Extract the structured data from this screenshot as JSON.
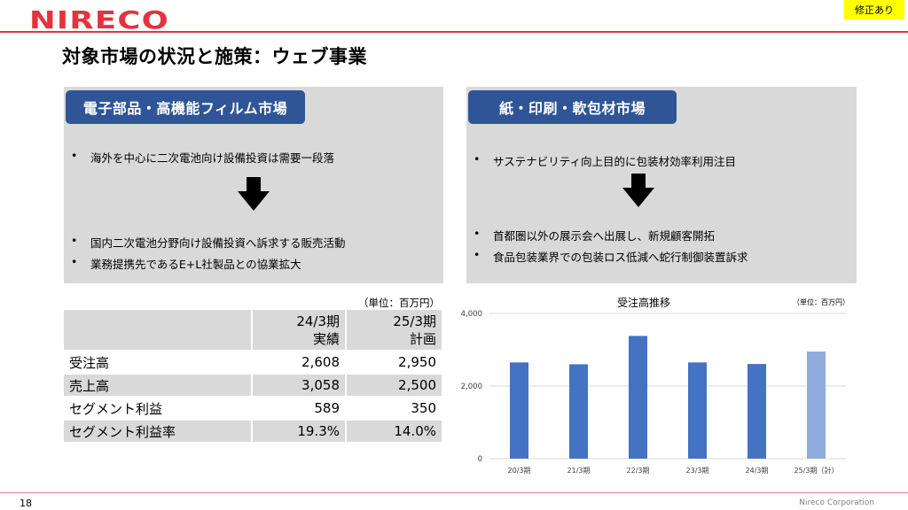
{
  "header": {
    "logo_text": "NIRECO",
    "badge": "修正あり",
    "title": "対象市場の状況と施策：ウェブ事業"
  },
  "colors": {
    "accent_red": "#e5323e",
    "label_blue": "#2f5597",
    "bar_blue": "#4472c4",
    "bar_light": "#8faadc",
    "panel_gray": "#d9d9d9"
  },
  "left_panel": {
    "label": "電子部品・高機能フィルム市場",
    "bullets_before": [
      "海外を中心に二次電池向け設備投資は需要一段落"
    ],
    "bullets_after": [
      "国内二次電池分野向け設備投資へ訴求する販売活動",
      "業務提携先であるE+L社製品との協業拡大"
    ],
    "bullet_char": "•",
    "arrow_icon": "down-arrow-icon"
  },
  "right_panel": {
    "label": "紙・印刷・軟包材市場",
    "bullets_before": [
      "サステナビリティ向上目的に包装材効率利用注目"
    ],
    "bullets_after": [
      "首都圏以外の展示会へ出展し、新規顧客開拓",
      "食品包装業界での包装ロス低減へ蛇行制御装置訴求"
    ],
    "bullet_char": "•",
    "arrow_icon": "down-arrow-icon"
  },
  "table": {
    "unit": "（単位：百万円）",
    "col_headers": [
      [
        "24/3期",
        "実績"
      ],
      [
        "25/3期",
        "計画"
      ]
    ],
    "rows": [
      {
        "label": "受注高",
        "v1": "2,608",
        "v2": "2,950"
      },
      {
        "label": "売上高",
        "v1": "3,058",
        "v2": "2,500"
      },
      {
        "label": "セグメント利益",
        "v1": "589",
        "v2": "350"
      },
      {
        "label": "セグメント利益率",
        "v1": "19.3%",
        "v2": "14.0%"
      }
    ]
  },
  "chart_data": {
    "type": "bar",
    "title": "受注高推移",
    "unit": "（単位：百万円）",
    "categories": [
      "20/3期",
      "21/3期",
      "22/3期",
      "23/3期",
      "24/3期",
      "25/3期（計）"
    ],
    "values": [
      2650,
      2600,
      3380,
      2650,
      2608,
      2950
    ],
    "ylim": [
      0,
      4000
    ],
    "yticks": [
      0,
      2000,
      4000
    ],
    "ytick_labels": [
      "0",
      "2,000",
      "4,000"
    ],
    "grid": true,
    "bar_colors": [
      "#4472c4",
      "#4472c4",
      "#4472c4",
      "#4472c4",
      "#4472c4",
      "#8faadc"
    ]
  },
  "footer": {
    "page_number": "18",
    "corporation": "Nireco Corporation"
  }
}
